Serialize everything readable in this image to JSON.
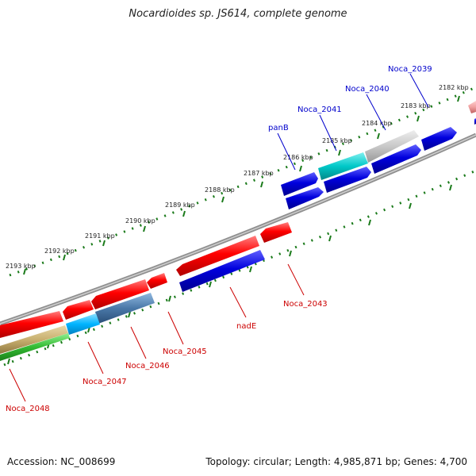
{
  "title": "Nocardioides sp. JS614, complete genome",
  "footer": {
    "accession": "Accession: NC_008699",
    "topology": "Topology: circular; Length: 4,985,871 bp; Genes: 4,700"
  },
  "colors": {
    "backbone": "#808080",
    "tick": "#1a7a1a",
    "forward_label": "#0000cc",
    "reverse_label": "#cc0000",
    "red": "#ff0000",
    "blue": "#0000dd",
    "cyan": "#00cccc",
    "grey": "#c8c8c8",
    "sky": "#00b4ff",
    "steel": "#4a78a8",
    "tan": "#c8b070",
    "green": "#33bb33",
    "pink": "#f0a0a0"
  },
  "kbp_labels": [
    "2182 kbp",
    "2183 kbp",
    "2184 kbp",
    "2185 kbp",
    "2186 kbp",
    "2187 kbp",
    "2188 kbp",
    "2189 kbp",
    "2190 kbp",
    "2191 kbp",
    "2192 kbp",
    "2193 kbp"
  ],
  "gene_labels": {
    "noca_2039": "Noca_2039",
    "noca_2040": "Noca_2040",
    "noca_2041": "Noca_2041",
    "panb": "panB",
    "noca_2043": "Noca_2043",
    "nade": "nadE",
    "noca_2045": "Noca_2045",
    "noca_2046": "Noca_2046",
    "noca_2047": "Noca_2047",
    "noca_2048": "Noca_2048"
  }
}
